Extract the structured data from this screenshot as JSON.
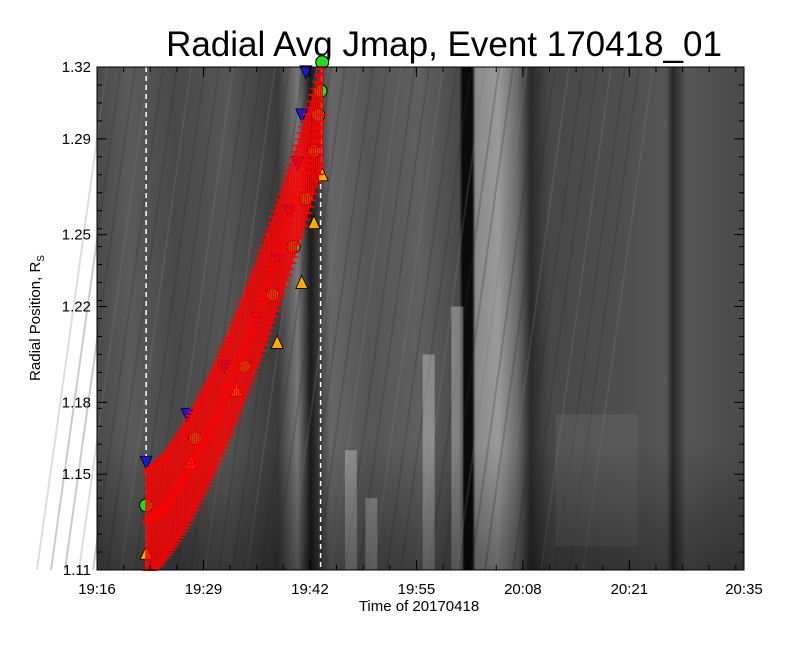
{
  "chart_data": {
    "type": "scatter",
    "title": "Radial Avg Jmap, Event 170418_01",
    "xlabel": "Time of 20170418",
    "ylabel": "Radial Position, R",
    "ylabel_subscript": "S",
    "x_unit": "minutes after 19:16",
    "xlim": [
      0,
      79
    ],
    "ylim": [
      1.11,
      1.32
    ],
    "x_ticks": [
      {
        "value": 0,
        "label": "19:16"
      },
      {
        "value": 13,
        "label": "19:29"
      },
      {
        "value": 26,
        "label": "19:42"
      },
      {
        "value": 39,
        "label": "19:55"
      },
      {
        "value": 52,
        "label": "20:08"
      },
      {
        "value": 65,
        "label": "20:21"
      },
      {
        "value": 79,
        "label": "20:35"
      }
    ],
    "y_ticks": [
      {
        "value": 1.11,
        "label": "1.11"
      },
      {
        "value": 1.15,
        "label": "1.15"
      },
      {
        "value": 1.18,
        "label": "1.18"
      },
      {
        "value": 1.22,
        "label": "1.22"
      },
      {
        "value": 1.25,
        "label": "1.25"
      },
      {
        "value": 1.29,
        "label": "1.29"
      },
      {
        "value": 1.32,
        "label": "1.32"
      }
    ],
    "vertical_markers": [
      6,
      27.3
    ],
    "grid": false,
    "legend": "none",
    "background": "grayscale j-map",
    "series": [
      {
        "marker": "triangle-down",
        "color": "#1a1acc",
        "x": [
          6.0,
          11.0,
          15.5,
          19.5,
          22.0,
          23.5,
          24.5,
          25.0,
          25.5
        ],
        "y": [
          1.155,
          1.175,
          1.195,
          1.215,
          1.24,
          1.26,
          1.28,
          1.3,
          1.318
        ]
      },
      {
        "marker": "circle",
        "color": "#22dd22",
        "x": [
          6.0,
          12.0,
          18.0,
          21.5,
          24.0,
          25.5,
          26.5,
          27.0,
          27.3,
          27.5
        ],
        "y": [
          1.137,
          1.165,
          1.195,
          1.225,
          1.245,
          1.265,
          1.285,
          1.3,
          1.31,
          1.322
        ]
      },
      {
        "marker": "triangle-up",
        "color": "#ffaa00",
        "x": [
          6.0,
          11.5,
          17.0,
          22.0,
          25.0,
          26.5,
          27.5
        ],
        "y": [
          1.117,
          1.155,
          1.185,
          1.205,
          1.23,
          1.255,
          1.275
        ]
      },
      {
        "marker": "cross-errorbar",
        "color": "#ff0000",
        "x_start": 6.0,
        "x_end": 27.5,
        "y_start": 1.13,
        "y_end": 1.3,
        "count": 90,
        "error_half": 0.022
      }
    ]
  }
}
